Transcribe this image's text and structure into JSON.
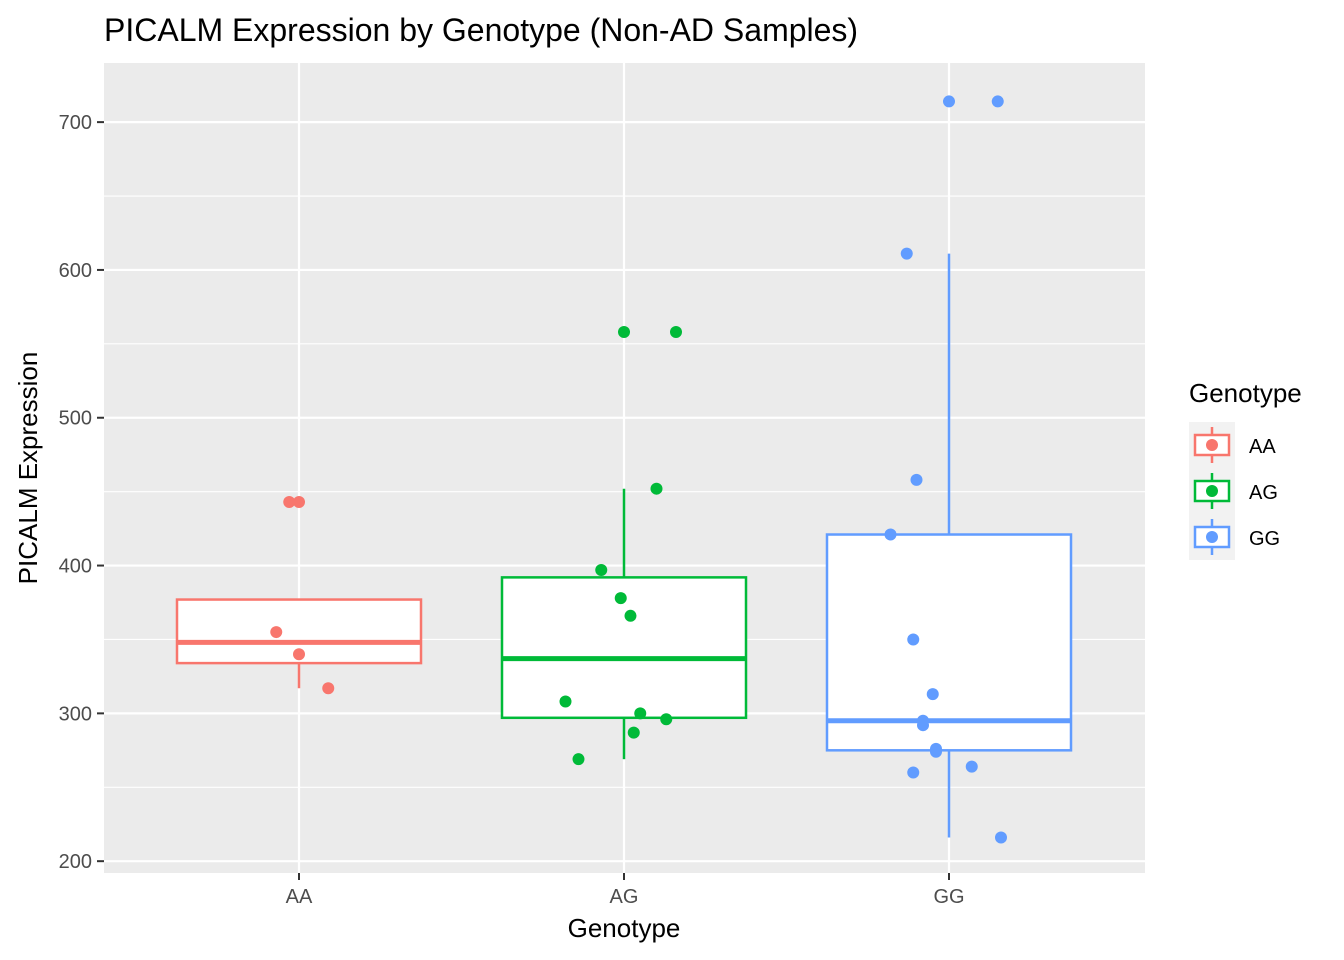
{
  "chart_data": {
    "type": "boxplot",
    "title": "PICALM Expression by Genotype (Non-AD Samples)",
    "xlabel": "Genotype",
    "ylabel": "PICALM Expression",
    "ylim": [
      192,
      740
    ],
    "yticks": [
      200,
      300,
      400,
      500,
      600,
      700
    ],
    "categories": [
      "AA",
      "AG",
      "GG"
    ],
    "legend": {
      "title": "Genotype",
      "position": "right",
      "entries": [
        "AA",
        "AG",
        "GG"
      ]
    },
    "grid": true,
    "colors": {
      "AA": "#F8766D",
      "AG": "#00BA38",
      "GG": "#619CFF",
      "panel": "#EBEBEB",
      "grid": "#FFFFFF"
    },
    "boxes": [
      {
        "group": "AA",
        "lower_whisker": 317,
        "q1": 334,
        "median": 348,
        "q3": 377,
        "upper_whisker": 377
      },
      {
        "group": "AG",
        "lower_whisker": 269,
        "q1": 297,
        "median": 337,
        "q3": 392,
        "upper_whisker": 452
      },
      {
        "group": "GG",
        "lower_whisker": 216,
        "q1": 275,
        "median": 295,
        "q3": 421,
        "upper_whisker": 611
      }
    ],
    "points": [
      {
        "group": "AA",
        "jitter": -0.03,
        "y": 443
      },
      {
        "group": "AA",
        "jitter": 0.0,
        "y": 443
      },
      {
        "group": "AA",
        "jitter": -0.07,
        "y": 355
      },
      {
        "group": "AA",
        "jitter": 0.0,
        "y": 340
      },
      {
        "group": "AA",
        "jitter": 0.09,
        "y": 317
      },
      {
        "group": "AG",
        "jitter": 0.0,
        "y": 558
      },
      {
        "group": "AG",
        "jitter": 0.16,
        "y": 558
      },
      {
        "group": "AG",
        "jitter": 0.1,
        "y": 452
      },
      {
        "group": "AG",
        "jitter": -0.07,
        "y": 397
      },
      {
        "group": "AG",
        "jitter": -0.01,
        "y": 378
      },
      {
        "group": "AG",
        "jitter": 0.02,
        "y": 366
      },
      {
        "group": "AG",
        "jitter": -0.18,
        "y": 308
      },
      {
        "group": "AG",
        "jitter": 0.05,
        "y": 300
      },
      {
        "group": "AG",
        "jitter": 0.13,
        "y": 296
      },
      {
        "group": "AG",
        "jitter": 0.03,
        "y": 287
      },
      {
        "group": "AG",
        "jitter": -0.14,
        "y": 269
      },
      {
        "group": "GG",
        "jitter": 0.0,
        "y": 714
      },
      {
        "group": "GG",
        "jitter": 0.15,
        "y": 714
      },
      {
        "group": "GG",
        "jitter": -0.13,
        "y": 611
      },
      {
        "group": "GG",
        "jitter": -0.1,
        "y": 458
      },
      {
        "group": "GG",
        "jitter": -0.18,
        "y": 421
      },
      {
        "group": "GG",
        "jitter": -0.11,
        "y": 350
      },
      {
        "group": "GG",
        "jitter": -0.05,
        "y": 313
      },
      {
        "group": "GG",
        "jitter": -0.08,
        "y": 295
      },
      {
        "group": "GG",
        "jitter": -0.08,
        "y": 292
      },
      {
        "group": "GG",
        "jitter": -0.04,
        "y": 276
      },
      {
        "group": "GG",
        "jitter": -0.04,
        "y": 274
      },
      {
        "group": "GG",
        "jitter": 0.07,
        "y": 264
      },
      {
        "group": "GG",
        "jitter": -0.11,
        "y": 260
      },
      {
        "group": "GG",
        "jitter": 0.16,
        "y": 216
      }
    ]
  }
}
